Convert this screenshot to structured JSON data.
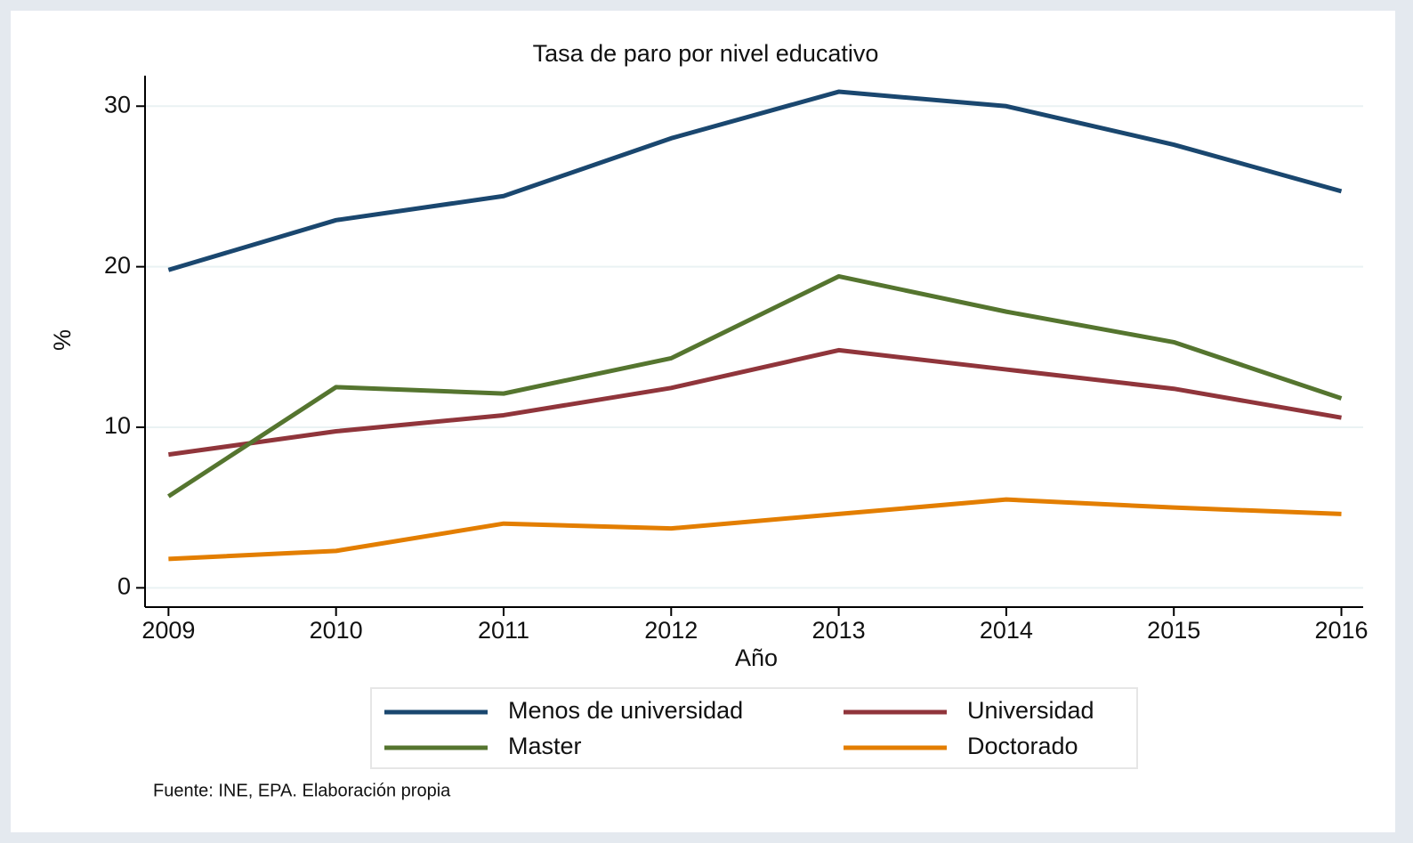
{
  "chart_data": {
    "type": "line",
    "title": "Tasa de paro por nivel educativo",
    "x_label": "Año",
    "y_label": "%",
    "note": "Fuente: INE, EPA. Elaboración propia",
    "x": [
      2009,
      2010,
      2011,
      2012,
      2013,
      2014,
      2015,
      2016
    ],
    "series": [
      {
        "name": "Menos de universidad",
        "color": "#1a476f",
        "values": [
          19.8,
          22.9,
          24.4,
          28.0,
          30.9,
          30.0,
          27.6,
          24.7
        ]
      },
      {
        "name": "Universidad",
        "color": "#90353b",
        "values": [
          8.3,
          9.75,
          10.75,
          12.45,
          14.8,
          13.6,
          12.4,
          10.6
        ]
      },
      {
        "name": "Master",
        "color": "#55752f",
        "values": [
          5.7,
          12.5,
          12.1,
          14.3,
          19.4,
          17.2,
          15.3,
          11.8
        ]
      },
      {
        "name": "Doctorado",
        "color": "#e37e00",
        "values": [
          1.8,
          2.3,
          4.0,
          3.7,
          4.6,
          5.5,
          5.0,
          4.6
        ]
      }
    ],
    "xlim": [
      2008.86,
      2016.13
    ],
    "xticks": [
      2009,
      2010,
      2011,
      2012,
      2013,
      2014,
      2015,
      2016
    ],
    "ylim": [
      -1.2,
      31.9
    ],
    "yticks": [
      0,
      10,
      20,
      30
    ],
    "grid": true,
    "legend": "bottom"
  }
}
